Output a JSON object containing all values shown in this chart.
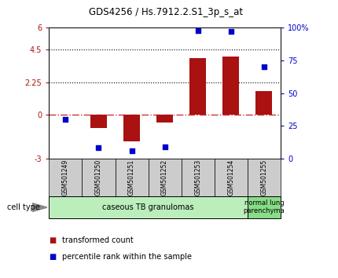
{
  "title": "GDS4256 / Hs.7912.2.S1_3p_s_at",
  "samples": [
    "GSM501249",
    "GSM501250",
    "GSM501251",
    "GSM501252",
    "GSM501253",
    "GSM501254",
    "GSM501255"
  ],
  "transformed_count": [
    0.0,
    -0.9,
    -1.8,
    -0.5,
    3.9,
    4.0,
    1.65
  ],
  "percentile_rank": [
    30,
    8,
    6,
    9,
    98,
    97,
    70
  ],
  "ylim_left": [
    -3,
    6
  ],
  "ylim_right": [
    0,
    100
  ],
  "yticks_left": [
    -3,
    0,
    2.25,
    4.5,
    6
  ],
  "ytick_labels_left": [
    "-3",
    "0",
    "2.25",
    "4.5",
    "6"
  ],
  "yticks_right": [
    0,
    25,
    50,
    75,
    100
  ],
  "ytick_labels_right": [
    "0",
    "25",
    "50",
    "75",
    "100%"
  ],
  "hlines": [
    2.25,
    4.5
  ],
  "bar_color": "#AA1111",
  "dot_color": "#0000CC",
  "zero_line_color": "#CC3333",
  "cell_type_groups": [
    {
      "label": "caseous TB granulomas",
      "start": 0,
      "end": 5,
      "color": "#BBEEBB"
    },
    {
      "label": "normal lung\nparenchyma",
      "start": 6,
      "end": 6,
      "color": "#88DD88"
    }
  ],
  "sample_box_color": "#CCCCCC",
  "cell_type_label": "cell type",
  "legend_items": [
    {
      "color": "#AA1111",
      "label": "transformed count"
    },
    {
      "color": "#0000CC",
      "label": "percentile rank within the sample"
    }
  ],
  "tick_color_left": "#AA1111",
  "tick_color_right": "#0000CC"
}
